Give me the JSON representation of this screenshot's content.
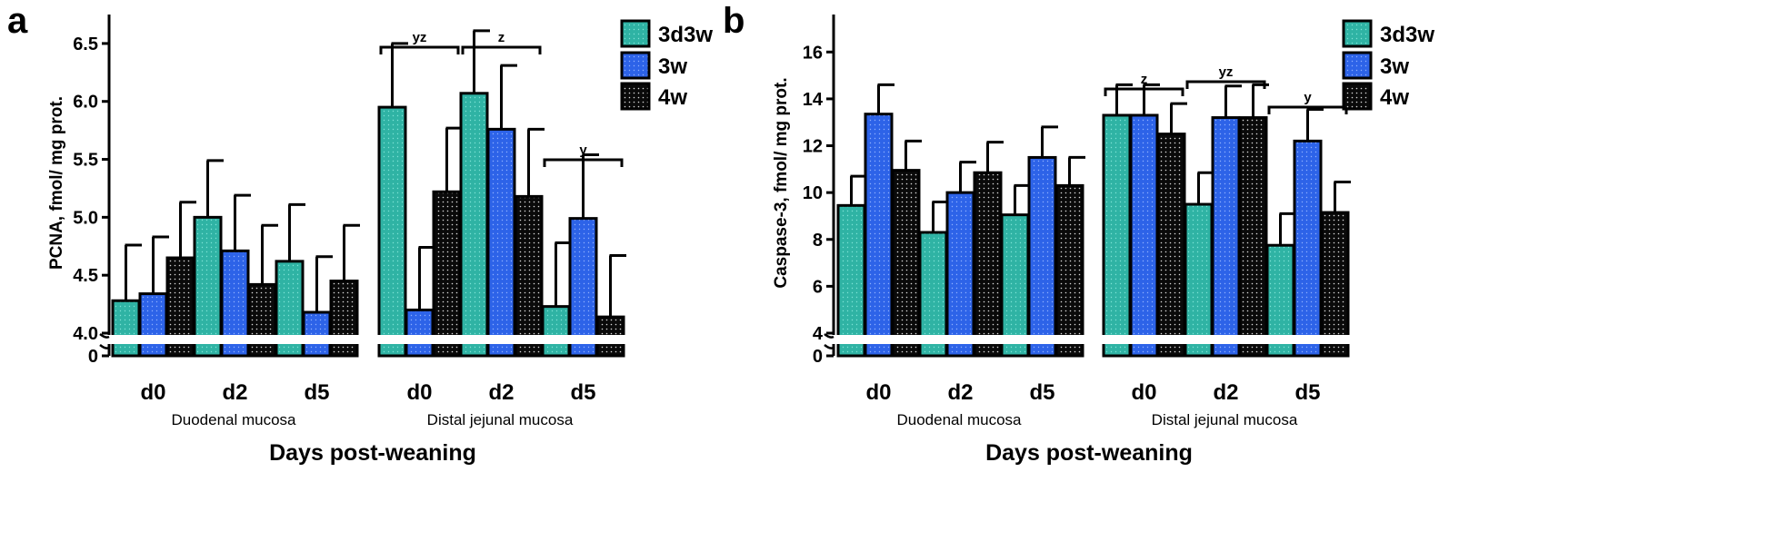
{
  "colors": {
    "s3d3w": "#2fb3a4",
    "s3w": "#2d63e8",
    "s4w": "#0a0a0a"
  },
  "chart_data": [
    {
      "panel": "a",
      "type": "bar",
      "ylabel": "PCNA, fmol/ mg prot.",
      "xlabel": "Days post-weaning",
      "ylim": [
        4.0,
        6.75
      ],
      "axis_break": {
        "below": 0,
        "above": 4.0
      },
      "yticks": [
        4.0,
        4.5,
        5.0,
        5.5,
        6.0,
        6.5
      ],
      "ytick_labels": [
        "4.0",
        "4.5",
        "5.0",
        "5.5",
        "6.0",
        "6.5"
      ],
      "zero_label": "0",
      "series_names": [
        "3d3w",
        "3w",
        "4w"
      ],
      "groups": [
        {
          "label": "Duodenal mucosa",
          "categories": [
            {
              "label": "d0",
              "values": [
                4.28,
                4.34,
                4.65
              ],
              "errors": [
                0.48,
                0.49,
                0.48
              ]
            },
            {
              "label": "d2",
              "values": [
                5.0,
                4.71,
                4.42
              ],
              "errors": [
                0.49,
                0.48,
                0.51
              ]
            },
            {
              "label": "d5",
              "values": [
                4.62,
                4.18,
                4.45
              ],
              "errors": [
                0.49,
                0.48,
                0.48
              ]
            }
          ]
        },
        {
          "label": "Distal jejunal mucosa",
          "categories": [
            {
              "label": "d0",
              "values": [
                5.95,
                4.2,
                5.22
              ],
              "errors": [
                0.55,
                0.54,
                0.55
              ]
            },
            {
              "label": "d2",
              "values": [
                6.07,
                5.76,
                5.18
              ],
              "errors": [
                0.54,
                0.55,
                0.58
              ]
            },
            {
              "label": "d5",
              "values": [
                4.23,
                4.99,
                4.14
              ],
              "errors": [
                0.55,
                0.55,
                0.53
              ]
            }
          ]
        }
      ],
      "significance": [
        {
          "group": 1,
          "category": 0,
          "label": "yz"
        },
        {
          "group": 1,
          "category": 1,
          "label": "z"
        },
        {
          "group": 1,
          "category": 2,
          "label": "y"
        }
      ]
    },
    {
      "panel": "b",
      "type": "bar",
      "ylabel": "Caspase-3, fmol/ mg prot.",
      "xlabel": "Days post-weaning",
      "ylim": [
        4.0,
        17.6
      ],
      "axis_break": {
        "below": 0,
        "above": 4.0
      },
      "yticks": [
        4,
        6,
        8,
        10,
        12,
        14,
        16
      ],
      "ytick_labels": [
        "4",
        "6",
        "8",
        "10",
        "12",
        "14",
        "16"
      ],
      "zero_label": "0",
      "series_names": [
        "3d3w",
        "3w",
        "4w"
      ],
      "groups": [
        {
          "label": "Duodenal mucosa",
          "categories": [
            {
              "label": "d0",
              "values": [
                9.45,
                13.35,
                10.95
              ],
              "errors": [
                1.25,
                1.25,
                1.25
              ]
            },
            {
              "label": "d2",
              "values": [
                8.3,
                10.0,
                10.85
              ],
              "errors": [
                1.3,
                1.3,
                1.3
              ]
            },
            {
              "label": "d5",
              "values": [
                9.05,
                11.5,
                10.3
              ],
              "errors": [
                1.25,
                1.3,
                1.2
              ]
            }
          ]
        },
        {
          "label": "Distal jejunal mucosa",
          "categories": [
            {
              "label": "d0",
              "values": [
                13.3,
                13.3,
                12.5
              ],
              "errors": [
                1.3,
                1.3,
                1.3
              ]
            },
            {
              "label": "d2",
              "values": [
                9.5,
                13.2,
                13.2
              ],
              "errors": [
                1.35,
                1.35,
                1.4
              ]
            },
            {
              "label": "d5",
              "values": [
                7.75,
                12.2,
                9.15
              ],
              "errors": [
                1.35,
                1.35,
                1.3
              ]
            }
          ]
        }
      ],
      "significance": [
        {
          "group": 1,
          "category": 0,
          "label": "z"
        },
        {
          "group": 1,
          "category": 1,
          "label": "yz"
        },
        {
          "group": 1,
          "category": 2,
          "label": "y"
        }
      ]
    }
  ]
}
